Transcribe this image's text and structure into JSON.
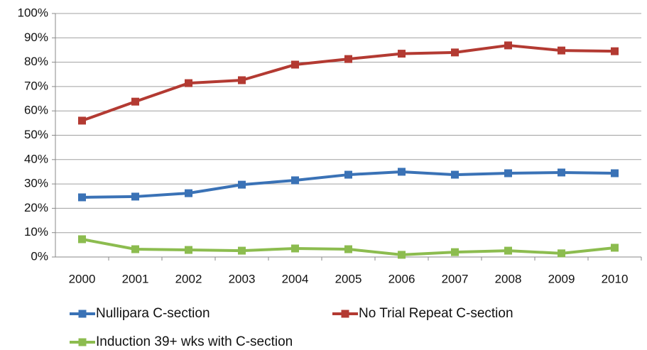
{
  "chart_data": {
    "type": "line",
    "categories": [
      "2000",
      "2001",
      "2002",
      "2003",
      "2004",
      "2005",
      "2006",
      "2007",
      "2008",
      "2009",
      "2010"
    ],
    "series": [
      {
        "name": "Nullipara C-section",
        "color": "#3a72b6",
        "values": [
          24.5,
          24.8,
          26.2,
          29.7,
          31.5,
          33.8,
          35.0,
          33.8,
          34.4,
          34.7,
          34.4
        ]
      },
      {
        "name": "No Trial Repeat C-section",
        "color": "#b33a32",
        "values": [
          56.0,
          63.8,
          71.4,
          72.6,
          79.0,
          81.3,
          83.5,
          84.0,
          86.9,
          84.8,
          84.5
        ]
      },
      {
        "name": "Induction 39+ wks with C-section",
        "color": "#8cbc4f",
        "values": [
          7.3,
          3.2,
          2.9,
          2.6,
          3.5,
          3.2,
          0.9,
          2.0,
          2.6,
          1.5,
          3.8
        ]
      }
    ],
    "ylim": [
      0,
      100
    ],
    "yticks": [
      {
        "value": 0,
        "label": "0%"
      },
      {
        "value": 10,
        "label": "10%"
      },
      {
        "value": 20,
        "label": "20%"
      },
      {
        "value": 30,
        "label": "30%"
      },
      {
        "value": 40,
        "label": "40%"
      },
      {
        "value": 50,
        "label": "50%"
      },
      {
        "value": 60,
        "label": "60%"
      },
      {
        "value": 70,
        "label": "70%"
      },
      {
        "value": 80,
        "label": "80%"
      },
      {
        "value": 90,
        "label": "90%"
      },
      {
        "value": 100,
        "label": "100%"
      }
    ],
    "grid": true,
    "legend": "bottom"
  }
}
